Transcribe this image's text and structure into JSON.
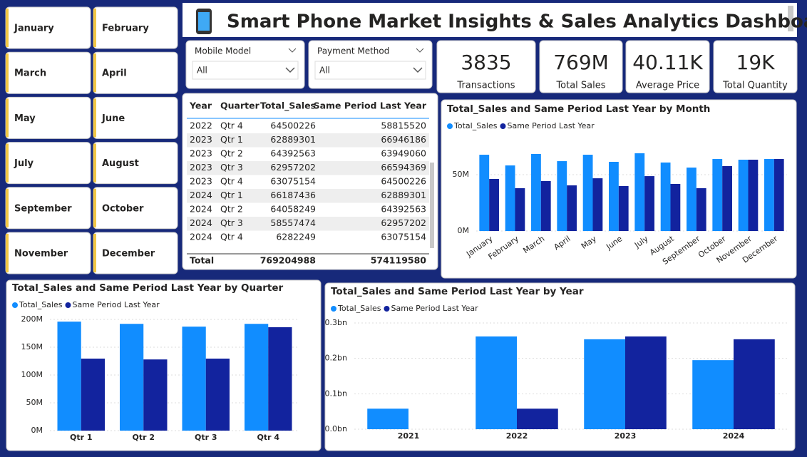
{
  "title": "Smart Phone Market Insights & Sales Analytics Dashboard",
  "months": [
    "January",
    "February",
    "March",
    "April",
    "May",
    "June",
    "July",
    "August",
    "September",
    "October",
    "November",
    "December"
  ],
  "filters": [
    {
      "label": "Mobile Model",
      "value": "All"
    },
    {
      "label": "Payment Method",
      "value": "All"
    }
  ],
  "kpis": [
    {
      "value": "3835",
      "label": "Transactions"
    },
    {
      "value": "769M",
      "label": "Total Sales"
    },
    {
      "value": "40.11K",
      "label": "Average Price"
    },
    {
      "value": "19K",
      "label": "Total Quantity"
    }
  ],
  "table": {
    "columns": [
      "Year",
      "Quarter",
      "Total_Sales",
      "Same Period Last Year"
    ],
    "rows": [
      [
        "2022",
        "Qtr 4",
        "64500226",
        "58815520"
      ],
      [
        "2023",
        "Qtr 1",
        "62889301",
        "66946186"
      ],
      [
        "2023",
        "Qtr 2",
        "64392563",
        "63949060"
      ],
      [
        "2023",
        "Qtr 3",
        "62957202",
        "66594369"
      ],
      [
        "2023",
        "Qtr 4",
        "63075154",
        "64500226"
      ],
      [
        "2024",
        "Qtr 1",
        "66187436",
        "62889301"
      ],
      [
        "2024",
        "Qtr 2",
        "64058249",
        "64392563"
      ],
      [
        "2024",
        "Qtr 3",
        "58557474",
        "62957202"
      ],
      [
        "2024",
        "Qtr 4",
        "6282249",
        "63075154"
      ]
    ],
    "total": {
      "label": "Total",
      "total_sales": "769204988",
      "same_period": "574119580"
    }
  },
  "chart_data": [
    {
      "type": "bar",
      "title": "Total_Sales and Same Period Last Year by Month",
      "categories": [
        "January",
        "February",
        "March",
        "April",
        "May",
        "June",
        "July",
        "August",
        "September",
        "October",
        "November",
        "December"
      ],
      "series": [
        {
          "name": "Total_Sales",
          "color": "#118dff",
          "values": [
            67.7,
            58.2,
            68.4,
            62.0,
            67.7,
            61.4,
            69.0,
            60.8,
            56.3,
            63.9,
            63.3,
            63.9
          ]
        },
        {
          "name": "Same Period Last Year",
          "color": "#12239e",
          "values": [
            46.2,
            38.0,
            44.3,
            40.5,
            46.8,
            39.9,
            48.7,
            41.8,
            38.0,
            57.6,
            63.3,
            63.9
          ]
        }
      ],
      "ylim": [
        0,
        80
      ],
      "yticks": [
        {
          "value": 0,
          "label": "0M"
        },
        {
          "value": 50,
          "label": "50M"
        }
      ],
      "grid": true
    },
    {
      "type": "bar",
      "title": "Total_Sales and Same Period Last Year by Quarter",
      "categories": [
        "Qtr 1",
        "Qtr 2",
        "Qtr 3",
        "Qtr 4"
      ],
      "series": [
        {
          "name": "Total_Sales",
          "color": "#118dff",
          "values": [
            196,
            192,
            187,
            192
          ]
        },
        {
          "name": "Same Period Last Year",
          "color": "#12239e",
          "values": [
            129.5,
            128,
            129.5,
            186
          ]
        }
      ],
      "ylim": [
        0,
        200
      ],
      "yticks": [
        {
          "value": 0,
          "label": "0M"
        },
        {
          "value": 50,
          "label": "50M"
        },
        {
          "value": 100,
          "label": "100M"
        },
        {
          "value": 150,
          "label": "150M"
        },
        {
          "value": 200,
          "label": "200M"
        }
      ],
      "grid": true
    },
    {
      "type": "bar",
      "title": "Total_Sales and Same Period Last Year by Year",
      "categories": [
        "2021",
        "2022",
        "2023",
        "2024"
      ],
      "series": [
        {
          "name": "Total_Sales",
          "color": "#118dff",
          "values": [
            0.058,
            0.262,
            0.254,
            0.195
          ]
        },
        {
          "name": "Same Period Last Year",
          "color": "#12239e",
          "values": [
            null,
            0.058,
            0.262,
            0.254
          ]
        }
      ],
      "ylim": [
        0,
        0.3
      ],
      "yticks": [
        {
          "value": 0,
          "label": "0.0bn"
        },
        {
          "value": 0.1,
          "label": "0.1bn"
        },
        {
          "value": 0.2,
          "label": "0.2bn"
        },
        {
          "value": 0.3,
          "label": "0.3bn"
        }
      ],
      "grid": true
    }
  ]
}
